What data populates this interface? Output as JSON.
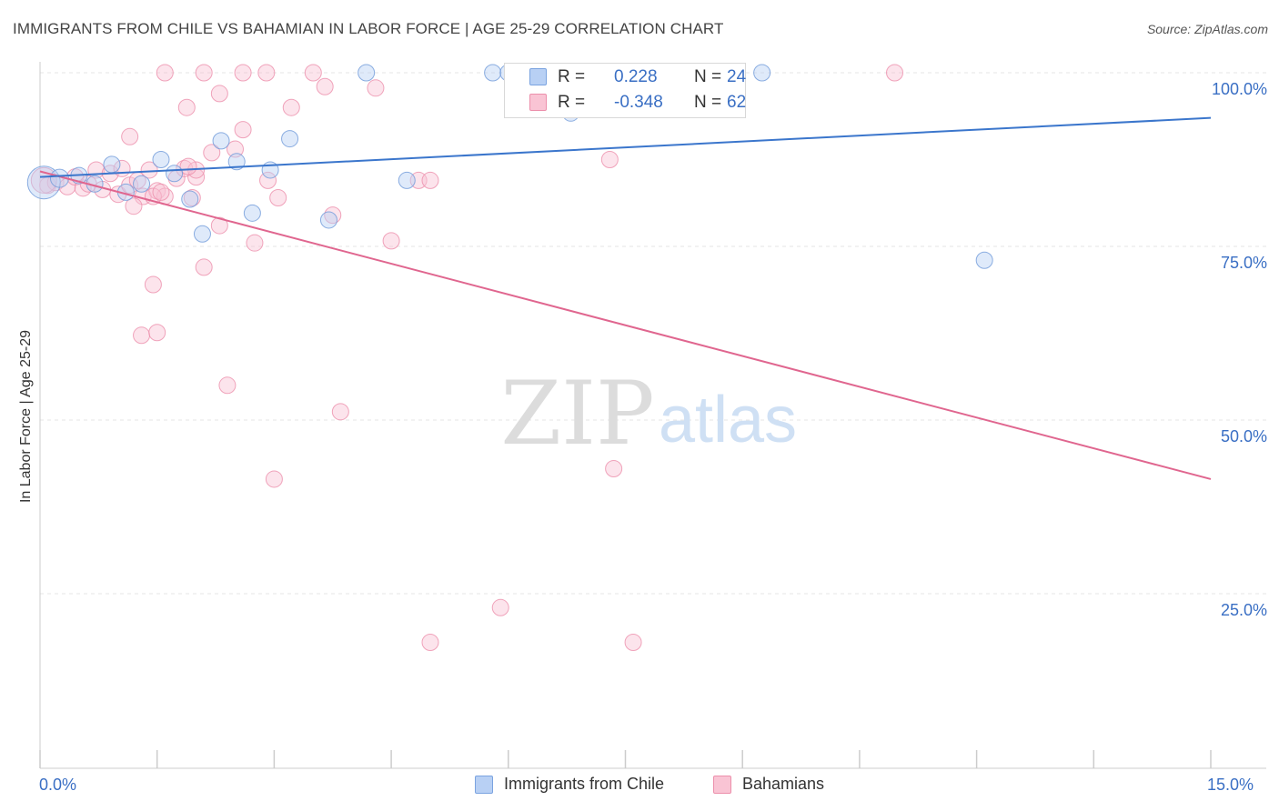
{
  "header": {
    "title": "IMMIGRANTS FROM CHILE VS BAHAMIAN IN LABOR FORCE | AGE 25-29 CORRELATION CHART",
    "source": "Source: ZipAtlas.com"
  },
  "watermark": {
    "zip": "ZIP",
    "atlas": "atlas"
  },
  "legend": {
    "series": [
      {
        "r_label": "R =",
        "r_value": "0.228",
        "n_label": "N =",
        "n_value": "24",
        "fill": "#b8d0f4",
        "stroke": "#7aa3e0"
      },
      {
        "r_label": "R =",
        "r_value": "-0.348",
        "n_label": "N =",
        "n_value": "62",
        "fill": "#f9c4d4",
        "stroke": "#ec8fab"
      }
    ]
  },
  "bottom_legend": {
    "items": [
      {
        "label": "Immigrants from Chile",
        "fill": "#b8d0f4",
        "stroke": "#7aa3e0"
      },
      {
        "label": "Bahamians",
        "fill": "#f9c4d4",
        "stroke": "#ec8fab"
      }
    ]
  },
  "axes": {
    "x_min_label": "0.0%",
    "x_max_label": "15.0%",
    "ylabel": "In Labor Force | Age 25-29"
  },
  "chart_data": {
    "type": "scatter",
    "title": "IMMIGRANTS FROM CHILE VS BAHAMIAN IN LABOR FORCE | AGE 25-29 CORRELATION CHART",
    "xlabel": "",
    "ylabel": "In Labor Force | Age 25-29",
    "xlim": [
      0,
      15
    ],
    "ylim": [
      5,
      105
    ],
    "y_ticks": [
      25,
      50,
      75,
      100
    ],
    "y_tick_labels": [
      "25.0%",
      "50.0%",
      "75.0%",
      "100.0%"
    ],
    "x_tick_labels": [
      "0.0%",
      "15.0%"
    ],
    "grid": true,
    "legend_position": "top-center",
    "colors": {
      "chile": "#3b76cc",
      "bahamians": "#e0668f"
    },
    "series": [
      {
        "name": "Immigrants from Chile",
        "R": 0.228,
        "N": 24,
        "trend": {
          "x": [
            0,
            15
          ],
          "y": [
            85.0,
            93.5
          ]
        },
        "points": [
          [
            0.05,
            84.2,
            18
          ],
          [
            0.25,
            84.8,
            10
          ],
          [
            0.5,
            85.2,
            9
          ],
          [
            0.7,
            84.0,
            9
          ],
          [
            0.92,
            86.8,
            9
          ],
          [
            1.1,
            82.8,
            9
          ],
          [
            1.3,
            84.0,
            9
          ],
          [
            1.55,
            87.5,
            9
          ],
          [
            1.72,
            85.5,
            9
          ],
          [
            1.92,
            81.8,
            9
          ],
          [
            2.08,
            76.8,
            9
          ],
          [
            2.32,
            90.2,
            9
          ],
          [
            2.52,
            87.2,
            9
          ],
          [
            2.72,
            79.8,
            9
          ],
          [
            2.95,
            86.0,
            9
          ],
          [
            3.2,
            90.5,
            9
          ],
          [
            3.7,
            78.8,
            9
          ],
          [
            4.18,
            100.0,
            9
          ],
          [
            4.7,
            84.5,
            9
          ],
          [
            5.8,
            100.0,
            9
          ],
          [
            6.0,
            100.0,
            9
          ],
          [
            6.8,
            94.2,
            9
          ],
          [
            9.25,
            100.0,
            9
          ],
          [
            12.1,
            73.0,
            9
          ]
        ]
      },
      {
        "name": "Bahamians",
        "R": -0.348,
        "N": 62,
        "trend": {
          "x": [
            0,
            15
          ],
          "y": [
            85.8,
            41.5
          ]
        },
        "points": [
          [
            0.1,
            83.8,
            9
          ],
          [
            0.2,
            84.2,
            9
          ],
          [
            0.35,
            83.6,
            9
          ],
          [
            0.45,
            85.0,
            9
          ],
          [
            0.55,
            83.4,
            9
          ],
          [
            0.62,
            84.0,
            9
          ],
          [
            0.72,
            86.0,
            9
          ],
          [
            0.8,
            83.2,
            9
          ],
          [
            0.9,
            85.5,
            9
          ],
          [
            1.0,
            82.5,
            9
          ],
          [
            1.05,
            86.2,
            9
          ],
          [
            1.15,
            83.8,
            9
          ],
          [
            1.25,
            84.5,
            9
          ],
          [
            1.32,
            82.2,
            9
          ],
          [
            1.4,
            86.0,
            9
          ],
          [
            1.5,
            83.0,
            9
          ],
          [
            1.6,
            82.2,
            9
          ],
          [
            1.75,
            84.8,
            9
          ],
          [
            1.85,
            86.2,
            9
          ],
          [
            2.0,
            85.0,
            9
          ],
          [
            1.15,
            90.8,
            9
          ],
          [
            1.2,
            80.8,
            9
          ],
          [
            1.45,
            82.2,
            9
          ],
          [
            1.55,
            82.8,
            9
          ],
          [
            1.45,
            69.5,
            9
          ],
          [
            1.3,
            62.2,
            9
          ],
          [
            1.5,
            62.6,
            9
          ],
          [
            1.88,
            95.0,
            9
          ],
          [
            1.95,
            82.0,
            9
          ],
          [
            2.0,
            86.0,
            9
          ],
          [
            2.1,
            72.0,
            9
          ],
          [
            2.2,
            88.5,
            9
          ],
          [
            2.3,
            78.0,
            9
          ],
          [
            2.5,
            89.0,
            9
          ],
          [
            2.6,
            91.8,
            9
          ],
          [
            2.4,
            55.0,
            9
          ],
          [
            2.75,
            75.5,
            9
          ],
          [
            2.92,
            84.5,
            9
          ],
          [
            3.05,
            82.0,
            9
          ],
          [
            3.0,
            41.5,
            9
          ],
          [
            3.22,
            95.0,
            9
          ],
          [
            3.65,
            98.0,
            9
          ],
          [
            3.75,
            79.5,
            9
          ],
          [
            3.85,
            51.2,
            9
          ],
          [
            4.3,
            97.8,
            9
          ],
          [
            4.5,
            75.8,
            9
          ],
          [
            4.85,
            84.5,
            9
          ],
          [
            5.0,
            84.5,
            9
          ],
          [
            1.6,
            100.0,
            9
          ],
          [
            2.1,
            100.0,
            9
          ],
          [
            2.6,
            100.0,
            9
          ],
          [
            2.9,
            100.0,
            9
          ],
          [
            3.5,
            100.0,
            9
          ],
          [
            1.9,
            86.5,
            9
          ],
          [
            2.3,
            97.0,
            9
          ],
          [
            5.0,
            18.0,
            9
          ],
          [
            5.9,
            23.0,
            9
          ],
          [
            7.3,
            87.5,
            9
          ],
          [
            7.35,
            43.0,
            9
          ],
          [
            7.6,
            18.0,
            9
          ],
          [
            10.95,
            100.0,
            9
          ],
          [
            0.05,
            84.5,
            14
          ]
        ]
      }
    ]
  }
}
